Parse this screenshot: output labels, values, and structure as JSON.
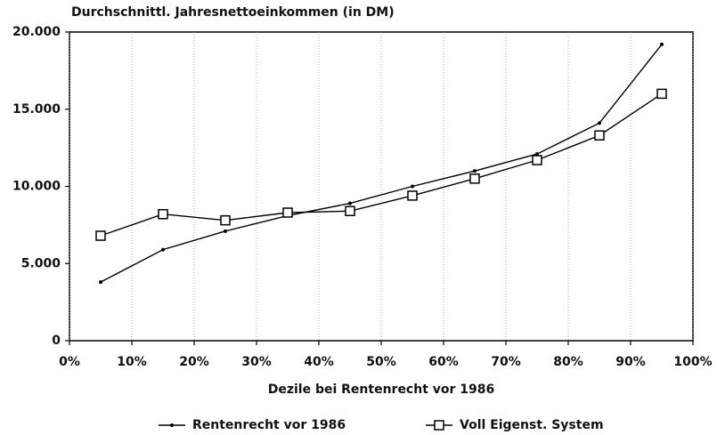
{
  "chart_data": {
    "type": "line",
    "title": "Durchschnittl. Jahresnettoeinkommen  (in DM)",
    "x_label": "Dezile bei Rentenrecht vor 1986",
    "x": [
      5,
      15,
      25,
      35,
      45,
      55,
      65,
      75,
      85,
      95
    ],
    "series": [
      {
        "name": "Rentenrecht vor 1986",
        "color": "#000000",
        "marker": "dot",
        "values": [
          3800,
          5900,
          7100,
          8100,
          8900,
          10000,
          11000,
          12100,
          14100,
          19200
        ]
      },
      {
        "name": "Voll Eigenst. System",
        "color": "#000000",
        "marker": "square",
        "values": [
          6800,
          8200,
          7800,
          8300,
          8400,
          9400,
          10500,
          11700,
          13300,
          16000
        ]
      }
    ],
    "xlim": [
      0,
      100
    ],
    "xticks": [
      {
        "value": 0,
        "label": "0%"
      },
      {
        "value": 10,
        "label": "10%"
      },
      {
        "value": 20,
        "label": "20%"
      },
      {
        "value": 30,
        "label": "30%"
      },
      {
        "value": 40,
        "label": "40%"
      },
      {
        "value": 50,
        "label": "50%"
      },
      {
        "value": 60,
        "label": "60%"
      },
      {
        "value": 70,
        "label": "70%"
      },
      {
        "value": 80,
        "label": "80%"
      },
      {
        "value": 90,
        "label": "90%"
      },
      {
        "value": 100,
        "label": "100%"
      }
    ],
    "ylim": [
      0,
      20000
    ],
    "yticks": [
      0,
      {
        "value": 5000,
        "label": "5.000"
      },
      {
        "value": 10000,
        "label": "10.000"
      },
      {
        "value": 15000,
        "label": "15.000"
      },
      {
        "value": 20000,
        "label": "20.000"
      }
    ],
    "grid": "x",
    "legend": "bottom"
  }
}
